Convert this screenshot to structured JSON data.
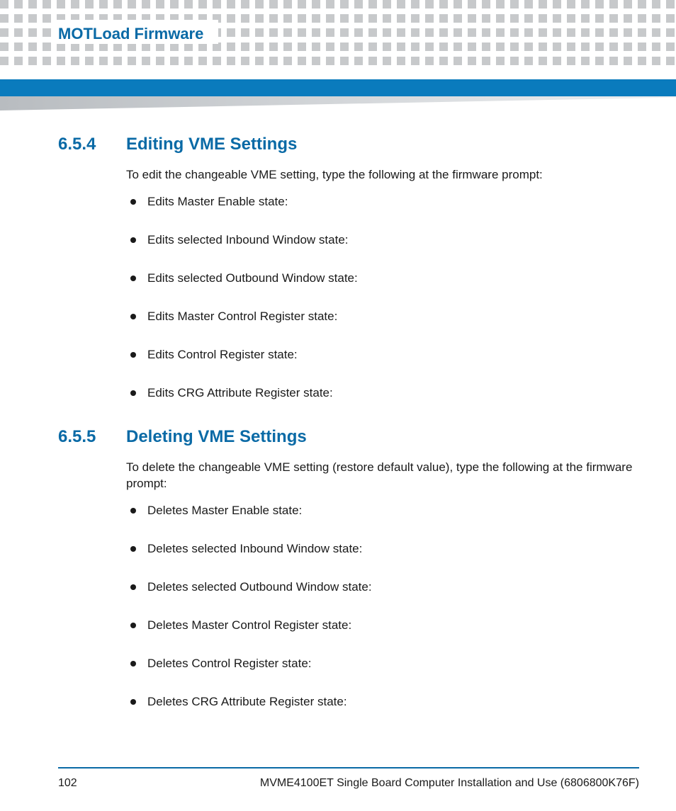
{
  "header": {
    "chapter_title": "MOTLoad Firmware",
    "dot_color": "#c7c9cb",
    "dot_size": 12,
    "dot_gap": 20,
    "rows": 5,
    "blue_bar_color": "#0a7bbd",
    "wedge_start": "#b8bcc0",
    "wedge_end": "#eef0f2"
  },
  "sections": [
    {
      "number": "6.5.4",
      "title": "Editing VME Settings",
      "intro": "To edit the changeable VME setting, type the following at the firmware prompt:",
      "items": [
        "Edits Master Enable state:",
        "Edits selected Inbound Window state:",
        "Edits selected Outbound Window state:",
        "Edits Master Control Register state:",
        "Edits Control Register state:",
        "Edits CRG Attribute Register state:"
      ]
    },
    {
      "number": "6.5.5",
      "title": "Deleting VME Settings",
      "intro": "To delete the changeable VME setting (restore default value), type the following at the firmware prompt:",
      "items": [
        "Deletes Master Enable state:",
        "Deletes selected Inbound Window state:",
        "Deletes selected Outbound Window state:",
        "Deletes Master Control Register state:",
        "Deletes Control Register state:",
        "Deletes CRG Attribute Register state:"
      ]
    }
  ],
  "footer": {
    "page_number": "102",
    "doc_title": "MVME4100ET Single Board Computer Installation and Use (6806800K76F)",
    "rule_color": "#0a6aa6"
  },
  "colors": {
    "heading": "#0a6aa6",
    "body_text": "#1a1a1a",
    "background": "#ffffff"
  },
  "typography": {
    "heading_fontsize_pt": 18,
    "body_fontsize_pt": 12,
    "heading_weight": 700
  }
}
